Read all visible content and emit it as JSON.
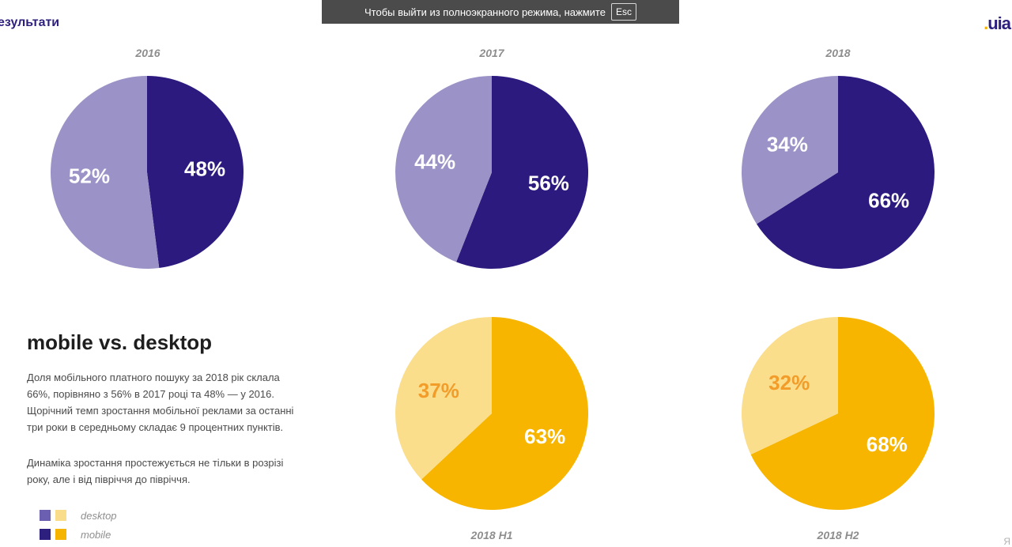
{
  "fullscreen_banner": {
    "text": "Чтобы выйти из полноэкранного режима, нажмите",
    "key": "Esc"
  },
  "slide": {
    "section_title": "езультати",
    "logo": {
      "text": "uia"
    },
    "heading": "mobile vs. desktop",
    "paragraph1": [
      "Доля мобільного платного пошуку за 2018 рік склала",
      "66%, порівняно з 56% в 2017 році та 48% — у 2016.",
      "Щорічний темп зростання мобільної реклами за останні",
      "три роки в середньому складає 9 процентних пунктів."
    ],
    "paragraph2": [
      "Динаміка зростання простежується не тільки в розрізі",
      "року, але і від півріччя до півріччя."
    ],
    "legend": [
      {
        "label": "desktop",
        "colors": [
          "#6a5fb0",
          "#f9dd8a"
        ]
      },
      {
        "label": "mobile",
        "colors": [
          "#2d1f7e",
          "#f5b400"
        ]
      }
    ],
    "corner_mark": "Я"
  },
  "colors": {
    "desktop_purple": "#9b93c7",
    "mobile_purple": "#2d1a7e",
    "desktop_yellow": "#fbde8c",
    "mobile_yellow": "#f7b500",
    "label_white": "#ffffff",
    "label_orange": "#f29c2a"
  },
  "chart_data": [
    {
      "type": "pie",
      "title": "2016",
      "labels": [
        "desktop",
        "mobile"
      ],
      "values": [
        52,
        48
      ],
      "value_labels": [
        "52%",
        "48%"
      ],
      "colors": [
        "#9b93c7",
        "#2d1a7e"
      ]
    },
    {
      "type": "pie",
      "title": "2017",
      "labels": [
        "desktop",
        "mobile"
      ],
      "values": [
        44,
        56
      ],
      "value_labels": [
        "44%",
        "56%"
      ],
      "colors": [
        "#9b93c7",
        "#2d1a7e"
      ]
    },
    {
      "type": "pie",
      "title": "2018",
      "labels": [
        "desktop",
        "mobile"
      ],
      "values": [
        34,
        66
      ],
      "value_labels": [
        "34%",
        "66%"
      ],
      "colors": [
        "#9b93c7",
        "#2d1a7e"
      ]
    },
    {
      "type": "pie",
      "title": "2018 H1",
      "labels": [
        "desktop",
        "mobile"
      ],
      "values": [
        37,
        63
      ],
      "value_labels": [
        "37%",
        "63%"
      ],
      "colors": [
        "#fbde8c",
        "#f7b500"
      ]
    },
    {
      "type": "pie",
      "title": "2018 H2",
      "labels": [
        "desktop",
        "mobile"
      ],
      "values": [
        32,
        68
      ],
      "value_labels": [
        "32%",
        "68%"
      ],
      "colors": [
        "#fbde8c",
        "#f7b500"
      ]
    }
  ]
}
